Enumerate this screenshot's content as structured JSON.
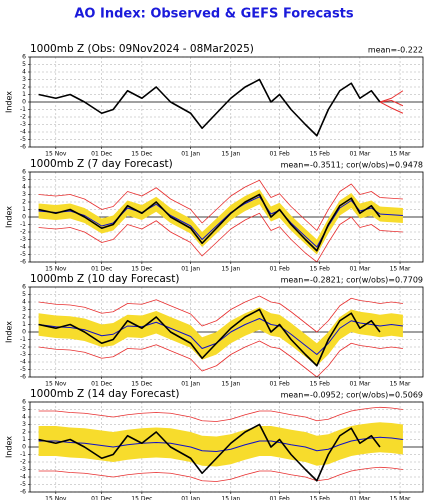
{
  "title": "AO Index: Observed & GEFS Forecasts",
  "chart_data": [
    {
      "type": "line",
      "title": "1000mb Z (Obs: 09Nov2024 - 08Mar2025)",
      "stats": "mean=-0.222",
      "ylabel": "Index",
      "x": [
        8,
        14,
        19,
        24,
        30,
        34,
        39,
        44,
        49,
        54,
        61,
        65,
        70,
        75,
        80,
        85,
        89,
        92,
        96,
        101,
        105,
        109,
        113,
        117,
        120,
        124,
        127,
        131,
        135
      ],
      "xlim": [
        5,
        142
      ],
      "ylim": [
        -6,
        6
      ],
      "grid": true,
      "xticks": [
        {
          "value": 14,
          "label": "15 Nov"
        },
        {
          "value": 30,
          "label": "01 Dec"
        },
        {
          "value": 44,
          "label": "15 Dec"
        },
        {
          "value": 61,
          "label": "01 Jan"
        },
        {
          "value": 75,
          "label": "15 Jan"
        },
        {
          "value": 92,
          "label": "01 Feb"
        },
        {
          "value": 106,
          "label": "15 Feb"
        },
        {
          "value": 120,
          "label": "01 Mar"
        },
        {
          "value": 134,
          "label": "15 Mar"
        }
      ],
      "yticks": [
        -6,
        -5,
        -4,
        -3,
        -2,
        -1,
        0,
        1,
        2,
        3,
        4,
        5,
        6
      ],
      "series": [
        {
          "color": "#e83030",
          "width": 1,
          "values": [
            null,
            null,
            null,
            null,
            null,
            null,
            null,
            null,
            null,
            null,
            null,
            null,
            null,
            null,
            null,
            null,
            null,
            null,
            null,
            null,
            null,
            null,
            null,
            null,
            null,
            null,
            0,
            0.5,
            1.5
          ]
        },
        {
          "color": "#e83030",
          "width": 1,
          "values": [
            null,
            null,
            null,
            null,
            null,
            null,
            null,
            null,
            null,
            null,
            null,
            null,
            null,
            null,
            null,
            null,
            null,
            null,
            null,
            null,
            null,
            null,
            null,
            null,
            null,
            null,
            0,
            -0.8,
            -1.5
          ]
        },
        {
          "color": "#e83030",
          "width": 1,
          "values": [
            null,
            null,
            null,
            null,
            null,
            null,
            null,
            null,
            null,
            null,
            null,
            null,
            null,
            null,
            null,
            null,
            null,
            null,
            null,
            null,
            null,
            null,
            null,
            null,
            null,
            null,
            0,
            0.2,
            -0.5
          ]
        },
        {
          "color": "#000000",
          "width": 1.6,
          "values": [
            1,
            0.5,
            1,
            0,
            -1.5,
            -1,
            1.5,
            0.5,
            2,
            0,
            -1.5,
            -3.5,
            -1.5,
            0.5,
            2,
            3,
            0,
            1,
            -1,
            -3,
            -4.5,
            -1,
            1.5,
            2.5,
            0.5,
            1.5,
            0,
            null,
            null
          ]
        }
      ]
    },
    {
      "type": "line",
      "title": "1000mb Z (7 day Forecast)",
      "stats": "mean=-0.3511; cor(w/obs)=0.9478",
      "ylabel": "Index",
      "x": [
        8,
        14,
        19,
        24,
        30,
        34,
        39,
        44,
        49,
        54,
        61,
        65,
        70,
        75,
        80,
        85,
        89,
        92,
        96,
        101,
        105,
        109,
        113,
        117,
        120,
        124,
        127,
        131,
        135
      ],
      "xlim": [
        5,
        142
      ],
      "ylim": [
        -6,
        6
      ],
      "grid": true,
      "xticks": [
        {
          "value": 14,
          "label": "15 Nov"
        },
        {
          "value": 30,
          "label": "01 Dec"
        },
        {
          "value": 44,
          "label": "15 Dec"
        },
        {
          "value": 61,
          "label": "01 Jan"
        },
        {
          "value": 75,
          "label": "15 Jan"
        },
        {
          "value": 92,
          "label": "01 Feb"
        },
        {
          "value": 106,
          "label": "15 Feb"
        },
        {
          "value": 120,
          "label": "01 Mar"
        },
        {
          "value": 134,
          "label": "15 Mar"
        }
      ],
      "yticks": [
        -6,
        -5,
        -4,
        -3,
        -2,
        -1,
        0,
        1,
        2,
        3,
        4,
        5,
        6
      ],
      "series": [
        {
          "color": "#f7dc2c",
          "low": [
            -0.2,
            -0.4,
            -0.2,
            -0.8,
            -2.2,
            -1.8,
            0.2,
            -0.4,
            0.7,
            -0.8,
            -2.2,
            -4,
            -2.2,
            -0.4,
            0.8,
            1.7,
            -0.6,
            -0.1,
            -1.8,
            -3.6,
            -5,
            -2.2,
            0.2,
            1.2,
            -0.2,
            0.2,
            -0.6,
            -0.7,
            -0.8
          ],
          "high": [
            1.8,
            1.6,
            1.8,
            1.2,
            -0.2,
            0.2,
            2.2,
            1.6,
            2.7,
            1.2,
            -0.2,
            -2,
            -0.2,
            1.6,
            2.8,
            3.7,
            1.4,
            1.9,
            0.2,
            -1.6,
            -3,
            -0.2,
            2.2,
            3.2,
            1.8,
            2.2,
            1.4,
            1.3,
            1.2
          ]
        },
        {
          "color": "#e83030",
          "width": 0.8,
          "values": [
            -1.4,
            -1.6,
            -1.4,
            -2,
            -3.4,
            -3,
            -1,
            -1.6,
            -0.5,
            -2,
            -3.4,
            -5.2,
            -3.4,
            -1.6,
            -0.4,
            0.5,
            -1.8,
            -1.3,
            -3,
            -4.8,
            -6,
            -3.4,
            -1,
            0,
            -1.4,
            -1,
            -1.8,
            -1.9,
            -2
          ]
        },
        {
          "color": "#e83030",
          "width": 0.8,
          "values": [
            3,
            2.8,
            3,
            2.4,
            1,
            1.4,
            3.4,
            2.8,
            3.9,
            2.4,
            1,
            -0.8,
            1,
            2.8,
            4,
            4.9,
            2.6,
            3.1,
            1.4,
            -0.4,
            -1.8,
            1,
            3.4,
            4.4,
            3,
            3.4,
            2.6,
            2.5,
            2.4
          ]
        },
        {
          "color": "#1010c8",
          "width": 1,
          "values": [
            0.8,
            0.6,
            0.8,
            0.2,
            -1.2,
            -0.8,
            1.2,
            0.6,
            1.7,
            0.2,
            -1.2,
            -3,
            -1.2,
            0.6,
            1.8,
            2.7,
            0.4,
            0.9,
            -0.8,
            -2.6,
            -4,
            -1.2,
            1.2,
            2.2,
            0.8,
            1.2,
            0.4,
            0.3,
            0.2
          ]
        },
        {
          "color": "#000000",
          "width": 1.6,
          "values": [
            1,
            0.5,
            1,
            0,
            -1.5,
            -1,
            1.5,
            0.5,
            2,
            0,
            -1.5,
            -3.5,
            -1.5,
            0.5,
            2,
            3,
            0,
            1,
            -1,
            -3,
            -4.5,
            -1,
            1.5,
            2.5,
            0.5,
            1.5,
            0,
            null,
            null
          ]
        }
      ]
    },
    {
      "type": "line",
      "title": "1000mb Z (10 day Forecast)",
      "stats": "mean=-0.2821; cor(w/obs)=0.7709",
      "ylabel": "Index",
      "x": [
        8,
        14,
        19,
        24,
        30,
        34,
        39,
        44,
        49,
        54,
        61,
        65,
        70,
        75,
        80,
        85,
        89,
        92,
        96,
        101,
        105,
        109,
        113,
        117,
        120,
        124,
        127,
        131,
        135
      ],
      "xlim": [
        5,
        142
      ],
      "ylim": [
        -6,
        6
      ],
      "grid": true,
      "xticks": [
        {
          "value": 14,
          "label": "15 Nov"
        },
        {
          "value": 30,
          "label": "01 Dec"
        },
        {
          "value": 44,
          "label": "15 Dec"
        },
        {
          "value": 61,
          "label": "01 Jan"
        },
        {
          "value": 75,
          "label": "15 Jan"
        },
        {
          "value": 92,
          "label": "01 Feb"
        },
        {
          "value": 106,
          "label": "15 Feb"
        },
        {
          "value": 120,
          "label": "01 Mar"
        },
        {
          "value": 134,
          "label": "15 Mar"
        }
      ],
      "yticks": [
        -6,
        -5,
        -4,
        -3,
        -2,
        -1,
        0,
        1,
        2,
        3,
        4,
        5,
        6
      ],
      "series": [
        {
          "color": "#f7dc2c",
          "low": [
            -0.5,
            -0.8,
            -0.9,
            -1.2,
            -2,
            -1.8,
            -0.7,
            -0.8,
            -0.2,
            -1,
            -2.1,
            -3.7,
            -3,
            -1.5,
            -0.5,
            0.3,
            -0.5,
            -0.7,
            -1.8,
            -3.3,
            -4.5,
            -3,
            -1,
            0,
            -0.3,
            -0.5,
            -0.7,
            -0.5,
            -0.7
          ],
          "high": [
            2.5,
            2.2,
            2.1,
            1.8,
            1,
            1.2,
            2.3,
            2.2,
            2.8,
            2,
            0.9,
            -0.7,
            0,
            1.5,
            2.5,
            3.3,
            2.5,
            2.3,
            1.2,
            -0.3,
            -1.5,
            0,
            2,
            3,
            2.7,
            2.5,
            2.3,
            2.5,
            2.3
          ]
        },
        {
          "color": "#e83030",
          "width": 0.8,
          "values": [
            -2,
            -2.3,
            -2.4,
            -2.7,
            -3.5,
            -3.3,
            -2.2,
            -2.3,
            -1.7,
            -2.5,
            -3.6,
            -5.2,
            -4.5,
            -3,
            -2,
            -1.2,
            -2,
            -2.2,
            -3.3,
            -4.8,
            -6,
            -4.5,
            -2.5,
            -1.5,
            -1.8,
            -2,
            -2.2,
            -2,
            -2.2
          ]
        },
        {
          "color": "#e83030",
          "width": 0.8,
          "values": [
            4,
            3.7,
            3.6,
            3.3,
            2.5,
            2.7,
            3.8,
            3.7,
            4.3,
            3.5,
            2.4,
            0.8,
            1.5,
            3,
            4,
            4.8,
            4,
            3.8,
            2.7,
            1.2,
            0,
            1.5,
            3.5,
            4.5,
            4.2,
            4,
            3.8,
            4,
            3.8
          ]
        },
        {
          "color": "#1010c8",
          "width": 1,
          "values": [
            1,
            0.7,
            0.6,
            0.3,
            -0.5,
            -0.3,
            0.8,
            0.7,
            1.3,
            0.5,
            -0.6,
            -2.2,
            -1.5,
            0,
            1,
            1.8,
            1,
            0.8,
            -0.3,
            -1.8,
            -3,
            -1.5,
            0.5,
            1.5,
            1.2,
            1,
            0.8,
            1,
            0.8
          ]
        },
        {
          "color": "#000000",
          "width": 1.6,
          "values": [
            1,
            0.5,
            1,
            0,
            -1.5,
            -1,
            1.5,
            0.5,
            2,
            0,
            -1.5,
            -3.5,
            -1.5,
            0.5,
            2,
            3,
            0,
            1,
            -1,
            -3,
            -4.5,
            -1,
            1.5,
            2.5,
            0.5,
            1.5,
            0,
            null,
            null
          ]
        }
      ]
    },
    {
      "type": "line",
      "title": "1000mb Z (14 day Forecast)",
      "stats": "mean=-0.0952; cor(w/obs)=0.5069",
      "ylabel": "Index",
      "x": [
        8,
        14,
        19,
        24,
        30,
        34,
        39,
        44,
        49,
        54,
        61,
        65,
        70,
        75,
        80,
        85,
        89,
        92,
        96,
        101,
        105,
        109,
        113,
        117,
        120,
        124,
        127,
        131,
        135
      ],
      "xlim": [
        5,
        142
      ],
      "ylim": [
        -6,
        6
      ],
      "grid": true,
      "xticks": [
        {
          "value": 14,
          "label": "15 Nov"
        },
        {
          "value": 30,
          "label": "01 Dec"
        },
        {
          "value": 44,
          "label": "15 Dec"
        },
        {
          "value": 61,
          "label": "01 Jan"
        },
        {
          "value": 75,
          "label": "15 Jan"
        },
        {
          "value": 92,
          "label": "01 Feb"
        },
        {
          "value": 106,
          "label": "15 Feb"
        },
        {
          "value": 120,
          "label": "01 Mar"
        },
        {
          "value": 134,
          "label": "15 Mar"
        }
      ],
      "yticks": [
        -6,
        -5,
        -4,
        -3,
        -2,
        -1,
        0,
        1,
        2,
        3,
        4,
        5,
        6
      ],
      "series": [
        {
          "color": "#f7dc2c",
          "low": [
            -1.2,
            -1.2,
            -1.4,
            -1.5,
            -1.8,
            -2,
            -1.7,
            -1.5,
            -1.4,
            -1.5,
            -2,
            -2.5,
            -2.6,
            -2.3,
            -1.7,
            -1.2,
            -1.2,
            -1.4,
            -1.7,
            -2,
            -2.5,
            -2.3,
            -1.7,
            -1.2,
            -1,
            -0.8,
            -0.7,
            -0.8,
            -1
          ],
          "high": [
            2.8,
            2.8,
            2.6,
            2.5,
            2.2,
            2,
            2.3,
            2.5,
            2.6,
            2.5,
            2,
            1.5,
            1.4,
            1.7,
            2.3,
            2.8,
            2.8,
            2.6,
            2.3,
            2,
            1.5,
            1.7,
            2.3,
            2.8,
            3,
            3.2,
            3.3,
            3.2,
            3
          ]
        },
        {
          "color": "#e83030",
          "width": 0.8,
          "values": [
            -3.2,
            -3.2,
            -3.4,
            -3.5,
            -3.8,
            -4,
            -3.7,
            -3.5,
            -3.4,
            -3.5,
            -4,
            -4.5,
            -4.6,
            -4.3,
            -3.7,
            -3.2,
            -3.2,
            -3.4,
            -3.7,
            -4,
            -4.5,
            -4.3,
            -3.7,
            -3.2,
            -3,
            -2.8,
            -2.7,
            -2.8,
            -3
          ]
        },
        {
          "color": "#e83030",
          "width": 0.8,
          "values": [
            4.8,
            4.8,
            4.6,
            4.5,
            4.2,
            4,
            4.3,
            4.5,
            4.6,
            4.5,
            4,
            3.5,
            3.4,
            3.7,
            4.3,
            4.8,
            4.8,
            4.6,
            4.3,
            4,
            3.5,
            3.7,
            4.3,
            4.8,
            5,
            5.2,
            5.3,
            5.2,
            5
          ]
        },
        {
          "color": "#1010c8",
          "width": 1,
          "values": [
            0.8,
            0.8,
            0.6,
            0.5,
            0.2,
            0,
            0.3,
            0.5,
            0.6,
            0.5,
            0,
            -0.5,
            -0.6,
            -0.3,
            0.3,
            0.8,
            0.8,
            0.6,
            0.3,
            0,
            -0.5,
            -0.3,
            0.3,
            0.8,
            1,
            1.2,
            1.3,
            1.2,
            1
          ]
        },
        {
          "color": "#000000",
          "width": 1.6,
          "values": [
            1,
            0.5,
            1,
            0,
            -1.5,
            -1,
            1.5,
            0.5,
            2,
            0,
            -1.5,
            -3.5,
            -1.5,
            0.5,
            2,
            3,
            0,
            1,
            -1,
            -3,
            -4.5,
            -1,
            1.5,
            2.5,
            0.5,
            1.5,
            0,
            null,
            null
          ]
        }
      ]
    }
  ]
}
